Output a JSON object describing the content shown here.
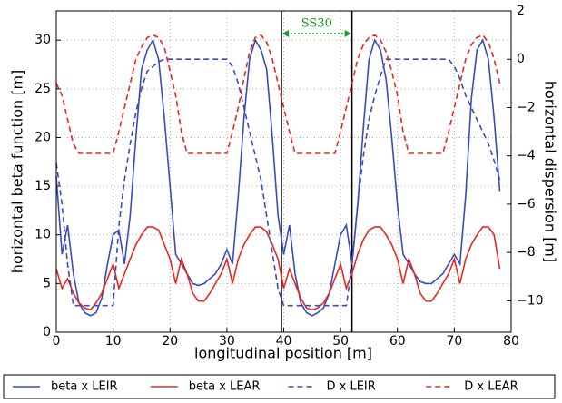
{
  "chart_data": {
    "type": "line",
    "x_label": "longitudinal position [m]",
    "y_label": "horizontal beta function [m]",
    "y2_label": "horizontal dispersion [m]",
    "x": [
      0,
      1,
      2,
      3,
      4,
      5,
      6,
      7,
      8,
      9,
      10,
      11,
      12,
      13,
      14,
      15,
      16,
      17,
      18,
      19,
      20,
      21,
      22,
      23,
      24,
      25,
      26,
      27,
      28,
      29,
      30,
      31,
      32,
      33,
      34,
      35,
      36,
      37,
      38,
      39,
      40,
      41,
      42,
      43,
      44,
      45,
      46,
      47,
      48,
      49,
      50,
      51,
      52,
      53,
      54,
      55,
      56,
      57,
      58,
      59,
      60,
      61,
      62,
      63,
      64,
      65,
      66,
      67,
      68,
      69,
      70,
      71,
      72,
      73,
      74,
      75,
      76,
      77,
      78
    ],
    "series": [
      {
        "name": "beta x LEIR",
        "color": "#3b4cb8",
        "dashed": false,
        "values": [
          16,
          8,
          11,
          6,
          3,
          2,
          1.7,
          2,
          3.5,
          7,
          10,
          10.5,
          7,
          12,
          20,
          27,
          29,
          30,
          28,
          22,
          15,
          8,
          7,
          6,
          5,
          4.8,
          5,
          5.5,
          6,
          7,
          8.5,
          7,
          14,
          22,
          28,
          30,
          29,
          27,
          20,
          12,
          8,
          11,
          6,
          3,
          2,
          1.7,
          2,
          2.5,
          4,
          7,
          10,
          11,
          7,
          13,
          21,
          28,
          30,
          29,
          26,
          20,
          13,
          8,
          7,
          6,
          5.2,
          5,
          5,
          5.5,
          6,
          7,
          8,
          7,
          14,
          24,
          29,
          30,
          28,
          22,
          14.5
        ]
      },
      {
        "name": "beta x LEAR",
        "color": "#e8281e",
        "dashed": false,
        "values": [
          6.5,
          4.5,
          5.5,
          4,
          3,
          2.5,
          2.3,
          3,
          4,
          5.5,
          7,
          4.5,
          6,
          7.5,
          9,
          10,
          10.8,
          10.8,
          10.5,
          9,
          7.5,
          5,
          7.5,
          6,
          4,
          3.2,
          3.2,
          4,
          5,
          6,
          7.5,
          5,
          7.5,
          9,
          10,
          10.8,
          10.8,
          10.3,
          9,
          7.5,
          4.5,
          6.5,
          5,
          3.5,
          2.5,
          2.3,
          2.5,
          3,
          4,
          5.5,
          7,
          4.5,
          6,
          8,
          9.5,
          10.5,
          10.8,
          10.8,
          10,
          9,
          7.5,
          5,
          7.5,
          6,
          4,
          3.2,
          3.2,
          4,
          5,
          6,
          7.5,
          5,
          7.5,
          9,
          10,
          10.8,
          10.8,
          10,
          6.5
        ]
      },
      {
        "name": "D x LEIR",
        "color": "#3b4cb8",
        "dashed": true,
        "axis": "y2",
        "values": [
          -4.3,
          -6,
          -8.5,
          -10.2,
          -10.2,
          -10.2,
          -10.2,
          -10.2,
          -10.2,
          -10.2,
          -10.2,
          -6.9,
          -5,
          -3.5,
          -2.2,
          -1.2,
          -0.5,
          -0.3,
          -0.1,
          0,
          0,
          0,
          0,
          0,
          0,
          0,
          0,
          0,
          0,
          0,
          0,
          -0.3,
          -1,
          -2,
          -3,
          -4,
          -5,
          -6.5,
          -8,
          -9.5,
          -10.2,
          -10.2,
          -10.2,
          -10.2,
          -10.2,
          -10.2,
          -10.2,
          -10.2,
          -10.2,
          -10.2,
          -10.2,
          -10.2,
          -8.5,
          -6,
          -4,
          -2.5,
          -1.5,
          -0.7,
          0,
          0,
          0,
          0,
          0,
          0,
          0,
          0,
          0,
          0,
          0,
          0,
          -0.3,
          -0.8,
          -1.5,
          -2,
          -2.5,
          -3,
          -3.5,
          -4.2,
          -5
        ]
      },
      {
        "name": "D x LEAR",
        "color": "#e8281e",
        "dashed": true,
        "axis": "y2",
        "values": [
          -1,
          -1.5,
          -2.5,
          -3.5,
          -3.9,
          -3.9,
          -3.9,
          -3.9,
          -3.9,
          -3.9,
          -3.9,
          -3,
          -2,
          -1,
          0,
          0.5,
          0.9,
          1,
          0.9,
          0.5,
          -0.5,
          -1.5,
          -3,
          -3.9,
          -3.9,
          -3.9,
          -3.9,
          -3.9,
          -3.9,
          -3.9,
          -3.9,
          -3,
          -2,
          -0.8,
          0.3,
          0.9,
          1,
          0.7,
          0,
          -1,
          -2,
          -3,
          -3.9,
          -3.9,
          -3.9,
          -3.9,
          -3.9,
          -3.9,
          -3.9,
          -3.9,
          -3,
          -2,
          -1,
          0,
          0.6,
          0.9,
          1,
          0.8,
          0.3,
          -0.5,
          -1.5,
          -3,
          -3.9,
          -3.9,
          -3.9,
          -3.9,
          -3.9,
          -3.9,
          -3.9,
          -3,
          -2,
          -1,
          0,
          0.6,
          0.9,
          1,
          0.7,
          0,
          -1
        ]
      }
    ],
    "xlim": [
      0,
      80
    ],
    "xticks": [
      0,
      10,
      20,
      30,
      40,
      50,
      60,
      70,
      80
    ],
    "ylim": [
      0,
      33
    ],
    "yticks": [
      0,
      5,
      10,
      15,
      20,
      25,
      30
    ],
    "y2lim": [
      -11.3,
      2
    ],
    "y2ticks": [
      {
        "value": -10,
        "label": "−10"
      },
      {
        "value": -8,
        "label": "−8"
      },
      {
        "value": -6,
        "label": "−6"
      },
      {
        "value": -4,
        "label": "−4"
      },
      {
        "value": -2,
        "label": "−2"
      },
      0,
      2
    ],
    "grid": true,
    "vlines": [
      39.6,
      52
    ],
    "annotation": {
      "text": "SS30",
      "color": "#1a9a2a",
      "x": [
        39.6,
        52
      ]
    },
    "legend": "bottom"
  }
}
